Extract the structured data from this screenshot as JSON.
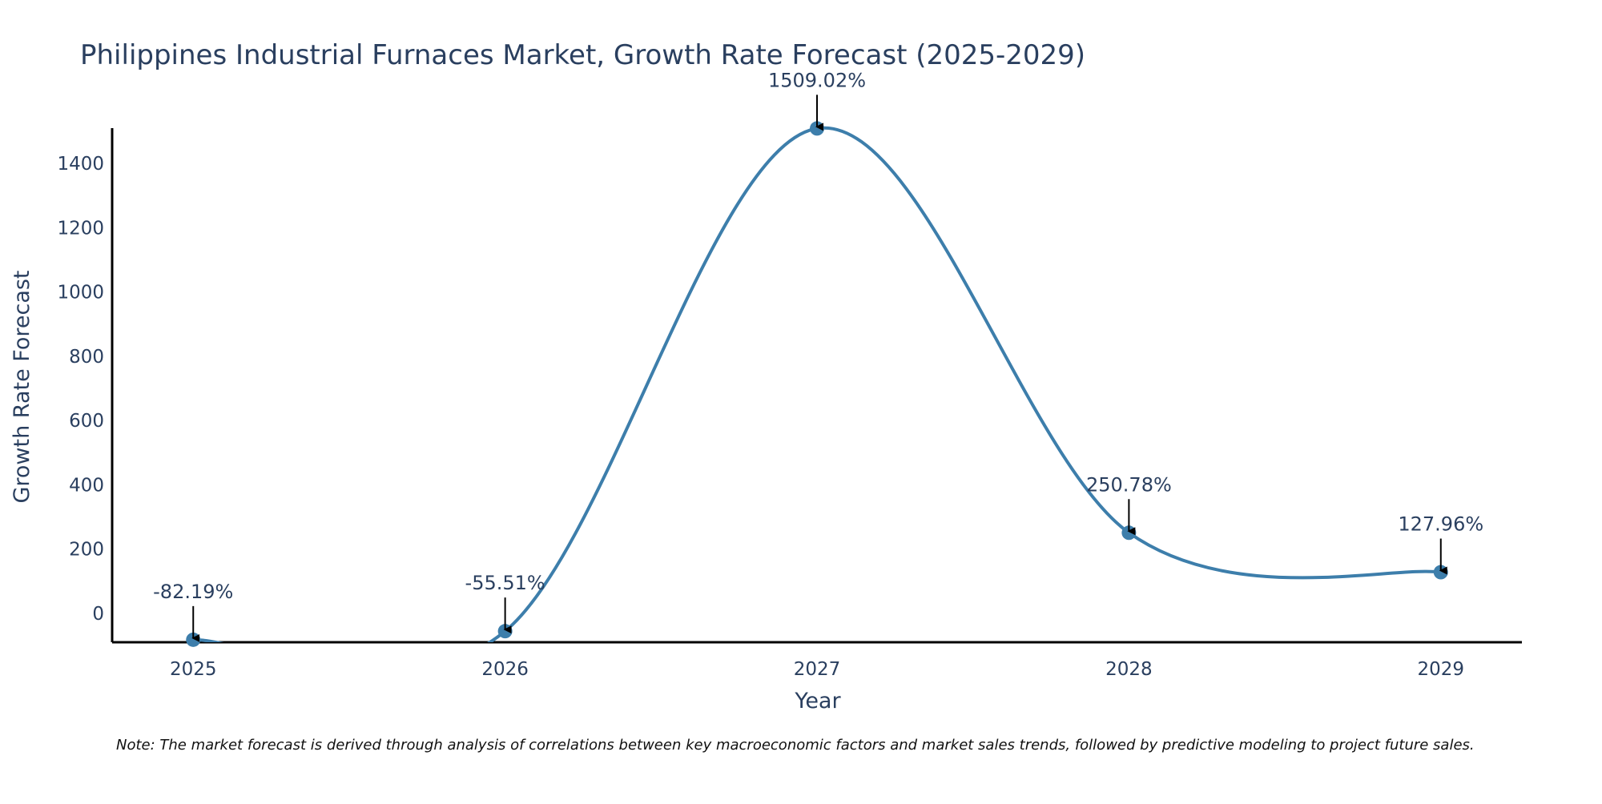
{
  "chart_data": {
    "type": "line",
    "title": "Philippines Industrial Furnaces Market, Growth Rate Forecast (2025-2029)",
    "xlabel": "Year",
    "ylabel": "Growth Rate Forecast",
    "categories": [
      "2025",
      "2026",
      "2027",
      "2028",
      "2029"
    ],
    "values": [
      -82.19,
      -55.51,
      1509.02,
      250.78,
      127.96
    ],
    "data_labels": [
      "-82.19%",
      "-55.51%",
      "1509.02%",
      "250.78%",
      "127.96%"
    ],
    "yticks": [
      0,
      200,
      400,
      600,
      800,
      1000,
      1200,
      1400
    ],
    "ylim": [
      -90,
      1510
    ],
    "x_range": [
      2024.74,
      2029.26
    ],
    "line_shape": "spline",
    "colors": {
      "line": "#3d7eab",
      "marker": "#3d7eab",
      "axis": "#000000",
      "text": "#2a3f5f",
      "annotation_arrow": "#000000"
    },
    "grid": false,
    "legend": "none"
  },
  "footer": {
    "note": "Note: The market forecast is derived through analysis of correlations between key macroeconomic factors and market sales trends, followed by predictive modeling to project future sales."
  }
}
